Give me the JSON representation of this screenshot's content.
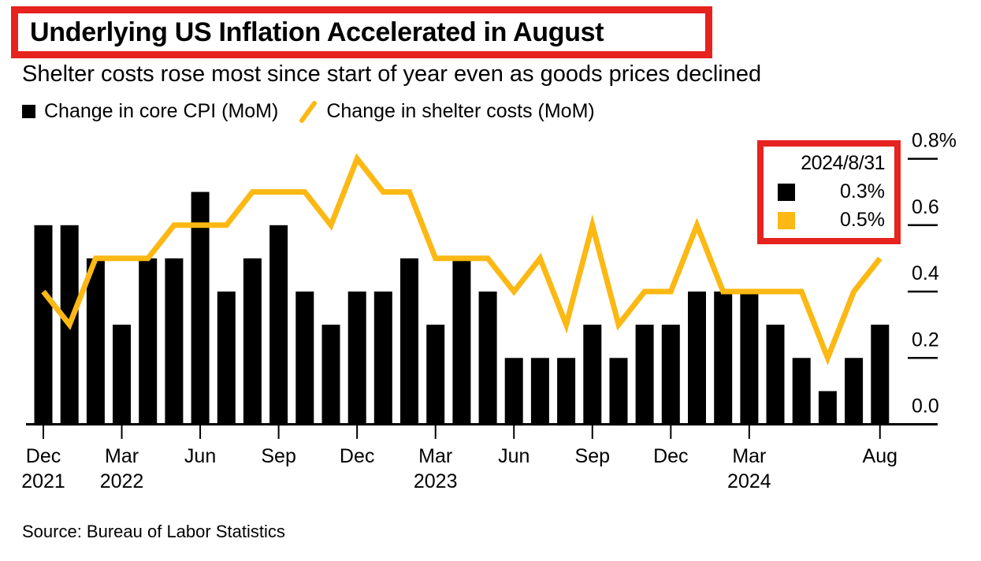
{
  "header": {
    "title": "Underlying US Inflation Accelerated in August",
    "subtitle": "Shelter costs rose most since start of year even as goods prices declined"
  },
  "legend": {
    "items": [
      {
        "label": "Change in core CPI (MoM)",
        "marker": "black-square",
        "color": "#000000"
      },
      {
        "label": "Change in shelter costs (MoM)",
        "marker": "yellow-slash",
        "color": "#FCB813"
      }
    ]
  },
  "tooltip": {
    "date": "2024/8/31",
    "rows": [
      {
        "series": "Change in core CPI (MoM)",
        "value": "0.3%",
        "color": "#000000"
      },
      {
        "series": "Change in shelter costs (MoM)",
        "value": "0.5%",
        "color": "#FCB813"
      }
    ]
  },
  "footer": {
    "source": "Source: Bureau of Labor Statistics"
  },
  "colors": {
    "bar": "#000000",
    "line": "#FCB813",
    "annotation_red": "#E6231E",
    "axis": "#000000",
    "background": "#FFFFFF"
  },
  "chart_data": {
    "type": "bar",
    "title": "Underlying US Inflation Accelerated in August",
    "subtitle": "Shelter costs rose most since start of year even as goods prices declined",
    "unit": "%",
    "grid": false,
    "legend_position": "top-left",
    "y_axis_side": "right",
    "ylim": [
      0.0,
      0.8
    ],
    "x": [
      "Dec 2021",
      "Jan 2022",
      "Feb 2022",
      "Mar 2022",
      "Apr 2022",
      "May 2022",
      "Jun 2022",
      "Jul 2022",
      "Aug 2022",
      "Sep 2022",
      "Oct 2022",
      "Nov 2022",
      "Dec 2022",
      "Jan 2023",
      "Feb 2023",
      "Mar 2023",
      "Apr 2023",
      "May 2023",
      "Jun 2023",
      "Jul 2023",
      "Aug 2023",
      "Sep 2023",
      "Oct 2023",
      "Nov 2023",
      "Dec 2023",
      "Jan 2024",
      "Feb 2024",
      "Mar 2024",
      "Apr 2024",
      "May 2024",
      "Jun 2024",
      "Jul 2024",
      "Aug 2024"
    ],
    "series": [
      {
        "name": "Change in core CPI (MoM)",
        "render": "bar",
        "color": "#000000",
        "values": [
          0.6,
          0.6,
          0.5,
          0.3,
          0.5,
          0.5,
          0.7,
          0.4,
          0.5,
          0.6,
          0.4,
          0.3,
          0.4,
          0.4,
          0.5,
          0.3,
          0.5,
          0.4,
          0.2,
          0.2,
          0.2,
          0.3,
          0.2,
          0.3,
          0.3,
          0.4,
          0.4,
          0.4,
          0.3,
          0.2,
          0.1,
          0.2,
          0.3
        ]
      },
      {
        "name": "Change in shelter costs (MoM)",
        "render": "line",
        "color": "#FCB813",
        "values": [
          0.4,
          0.3,
          0.5,
          0.5,
          0.5,
          0.6,
          0.6,
          0.6,
          0.7,
          0.7,
          0.7,
          0.6,
          0.8,
          0.7,
          0.7,
          0.5,
          0.5,
          0.5,
          0.4,
          0.5,
          0.3,
          0.6,
          0.3,
          0.4,
          0.4,
          0.6,
          0.4,
          0.4,
          0.4,
          0.4,
          0.2,
          0.4,
          0.5
        ]
      }
    ],
    "yticks": [
      {
        "value": 0.8,
        "label": "0.8%"
      },
      {
        "value": 0.6,
        "label": "0.6"
      },
      {
        "value": 0.4,
        "label": "0.4"
      },
      {
        "value": 0.2,
        "label": "0.2"
      },
      {
        "value": 0.0,
        "label": "0.0"
      }
    ],
    "xticks": [
      {
        "index": 0,
        "month": "Dec",
        "year": "2021"
      },
      {
        "index": 3,
        "month": "Mar",
        "year": "2022"
      },
      {
        "index": 6,
        "month": "Jun"
      },
      {
        "index": 9,
        "month": "Sep"
      },
      {
        "index": 12,
        "month": "Dec"
      },
      {
        "index": 15,
        "month": "Mar",
        "year": "2023"
      },
      {
        "index": 18,
        "month": "Jun"
      },
      {
        "index": 21,
        "month": "Sep"
      },
      {
        "index": 24,
        "month": "Dec"
      },
      {
        "index": 27,
        "month": "Mar",
        "year": "2024"
      },
      {
        "index": 32,
        "month": "Aug"
      }
    ]
  }
}
